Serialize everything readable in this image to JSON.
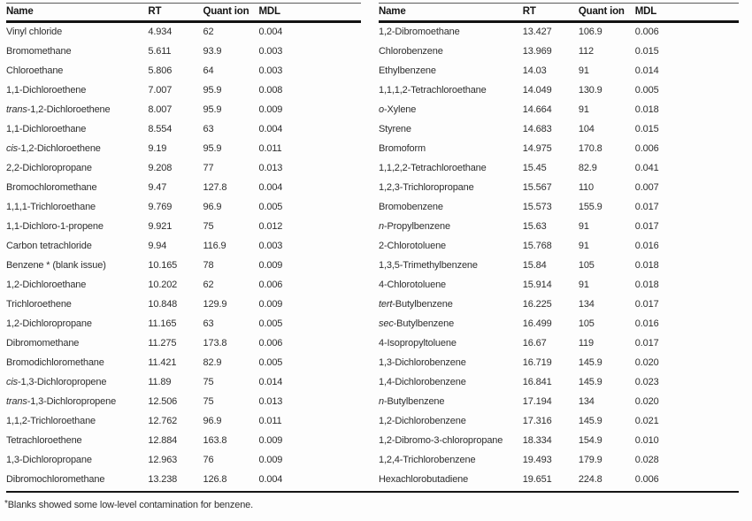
{
  "document": {
    "footnote_marker": "*",
    "footnote_text": "Blanks showed some low-level contamination for benzene."
  },
  "tables": [
    {
      "id": "left",
      "headers": [
        "Name",
        "RT",
        "Quant ion",
        "MDL"
      ],
      "rows": [
        {
          "prefix": "",
          "name": "Vinyl chloride",
          "rt": "4.934",
          "quant_ion": "62",
          "mdl": "0.004"
        },
        {
          "prefix": "",
          "name": "Bromomethane",
          "rt": "5.611",
          "quant_ion": "93.9",
          "mdl": "0.003"
        },
        {
          "prefix": "",
          "name": "Chloroethane",
          "rt": "5.806",
          "quant_ion": "64",
          "mdl": "0.003"
        },
        {
          "prefix": "",
          "name": "1,1-Dichloroethene",
          "rt": "7.007",
          "quant_ion": "95.9",
          "mdl": "0.008"
        },
        {
          "prefix": "trans",
          "name": "-1,2-Dichloroethene",
          "rt": "8.007",
          "quant_ion": "95.9",
          "mdl": "0.009"
        },
        {
          "prefix": "",
          "name": "1,1-Dichloroethane",
          "rt": "8.554",
          "quant_ion": "63",
          "mdl": "0.004"
        },
        {
          "prefix": "cis",
          "name": "-1,2-Dichloroethene",
          "rt": "9.19",
          "quant_ion": "95.9",
          "mdl": "0.011"
        },
        {
          "prefix": "",
          "name": "2,2-Dichloropropane",
          "rt": "9.208",
          "quant_ion": "77",
          "mdl": "0.013"
        },
        {
          "prefix": "",
          "name": "Bromochloromethane",
          "rt": "9.47",
          "quant_ion": "127.8",
          "mdl": "0.004"
        },
        {
          "prefix": "",
          "name": "1,1,1-Trichloroethane",
          "rt": "9.769",
          "quant_ion": "96.9",
          "mdl": "0.005"
        },
        {
          "prefix": "",
          "name": "1,1-Dichloro-1-propene",
          "rt": "9.921",
          "quant_ion": "75",
          "mdl": "0.012"
        },
        {
          "prefix": "",
          "name": "Carbon tetrachloride",
          "rt": "9.94",
          "quant_ion": "116.9",
          "mdl": "0.003"
        },
        {
          "prefix": "",
          "name": "Benzene * (blank issue)",
          "rt": "10.165",
          "quant_ion": "78",
          "mdl": "0.009"
        },
        {
          "prefix": "",
          "name": "1,2-Dichloroethane",
          "rt": "10.202",
          "quant_ion": "62",
          "mdl": "0.006"
        },
        {
          "prefix": "",
          "name": "Trichloroethene",
          "rt": "10.848",
          "quant_ion": "129.9",
          "mdl": "0.009"
        },
        {
          "prefix": "",
          "name": "1,2-Dichloropropane",
          "rt": "11.165",
          "quant_ion": "63",
          "mdl": "0.005"
        },
        {
          "prefix": "",
          "name": "Dibromomethane",
          "rt": "11.275",
          "quant_ion": "173.8",
          "mdl": "0.006"
        },
        {
          "prefix": "",
          "name": "Bromodichloromethane",
          "rt": "11.421",
          "quant_ion": "82.9",
          "mdl": "0.005"
        },
        {
          "prefix": "cis",
          "name": "-1,3-Dichloropropene",
          "rt": "11.89",
          "quant_ion": "75",
          "mdl": "0.014"
        },
        {
          "prefix": "trans",
          "name": "-1,3-Dichloropropene",
          "rt": "12.506",
          "quant_ion": "75",
          "mdl": "0.013"
        },
        {
          "prefix": "",
          "name": "1,1,2-Trichloroethane",
          "rt": "12.762",
          "quant_ion": "96.9",
          "mdl": "0.011"
        },
        {
          "prefix": "",
          "name": "Tetrachloroethene",
          "rt": "12.884",
          "quant_ion": "163.8",
          "mdl": "0.009"
        },
        {
          "prefix": "",
          "name": "1,3-Dichloropropane",
          "rt": "12.963",
          "quant_ion": "76",
          "mdl": "0.009"
        },
        {
          "prefix": "",
          "name": "Dibromochloromethane",
          "rt": "13.238",
          "quant_ion": "126.8",
          "mdl": "0.004"
        }
      ]
    },
    {
      "id": "right",
      "headers": [
        "Name",
        "RT",
        "Quant ion",
        "MDL"
      ],
      "rows": [
        {
          "prefix": "",
          "name": "1,2-Dibromoethane",
          "rt": "13.427",
          "quant_ion": "106.9",
          "mdl": "0.006"
        },
        {
          "prefix": "",
          "name": "Chlorobenzene",
          "rt": "13.969",
          "quant_ion": "112",
          "mdl": "0.015"
        },
        {
          "prefix": "",
          "name": "Ethylbenzene",
          "rt": "14.03",
          "quant_ion": "91",
          "mdl": "0.014"
        },
        {
          "prefix": "",
          "name": "1,1,1,2-Tetrachloroethane",
          "rt": "14.049",
          "quant_ion": "130.9",
          "mdl": "0.005"
        },
        {
          "prefix": "o",
          "name": "-Xylene",
          "rt": "14.664",
          "quant_ion": "91",
          "mdl": "0.018"
        },
        {
          "prefix": "",
          "name": "Styrene",
          "rt": "14.683",
          "quant_ion": "104",
          "mdl": "0.015"
        },
        {
          "prefix": "",
          "name": "Bromoform",
          "rt": "14.975",
          "quant_ion": "170.8",
          "mdl": "0.006"
        },
        {
          "prefix": "",
          "name": "1,1,2,2-Tetrachloroethane",
          "rt": "15.45",
          "quant_ion": "82.9",
          "mdl": "0.041"
        },
        {
          "prefix": "",
          "name": "1,2,3-Trichloropropane",
          "rt": "15.567",
          "quant_ion": "110",
          "mdl": "0.007"
        },
        {
          "prefix": "",
          "name": "Bromobenzene",
          "rt": "15.573",
          "quant_ion": "155.9",
          "mdl": "0.017"
        },
        {
          "prefix": "n",
          "name": "-Propylbenzene",
          "rt": "15.63",
          "quant_ion": "91",
          "mdl": "0.017"
        },
        {
          "prefix": "",
          "name": "2-Chlorotoluene",
          "rt": "15.768",
          "quant_ion": "91",
          "mdl": "0.016"
        },
        {
          "prefix": "",
          "name": "1,3,5-Trimethylbenzene",
          "rt": "15.84",
          "quant_ion": "105",
          "mdl": "0.018"
        },
        {
          "prefix": "",
          "name": "4-Chlorotoluene",
          "rt": "15.914",
          "quant_ion": "91",
          "mdl": "0.018"
        },
        {
          "prefix": "tert",
          "name": "-Butylbenzene",
          "rt": "16.225",
          "quant_ion": "134",
          "mdl": "0.017"
        },
        {
          "prefix": "sec",
          "name": "-Butylbenzene",
          "rt": "16.499",
          "quant_ion": "105",
          "mdl": "0.016"
        },
        {
          "prefix": "",
          "name": "4-Isopropyltoluene",
          "rt": "16.67",
          "quant_ion": "119",
          "mdl": "0.017"
        },
        {
          "prefix": "",
          "name": "1,3-Dichlorobenzene",
          "rt": "16.719",
          "quant_ion": "145.9",
          "mdl": "0.020"
        },
        {
          "prefix": "",
          "name": "1,4-Dichlorobenzene",
          "rt": "16.841",
          "quant_ion": "145.9",
          "mdl": "0.023"
        },
        {
          "prefix": "n",
          "name": "-Butylbenzene",
          "rt": "17.194",
          "quant_ion": "134",
          "mdl": "0.020"
        },
        {
          "prefix": "",
          "name": "1,2-Dichlorobenzene",
          "rt": "17.316",
          "quant_ion": "145.9",
          "mdl": "0.021"
        },
        {
          "prefix": "",
          "name": "1,2-Dibromo-3-chloropropane",
          "rt": "18.334",
          "quant_ion": "154.9",
          "mdl": "0.010"
        },
        {
          "prefix": "",
          "name": "1,2,4-Trichlorobenzene",
          "rt": "19.493",
          "quant_ion": "179.9",
          "mdl": "0.028"
        },
        {
          "prefix": "",
          "name": "Hexachlorobutadiene",
          "rt": "19.651",
          "quant_ion": "224.8",
          "mdl": "0.006"
        }
      ]
    }
  ]
}
